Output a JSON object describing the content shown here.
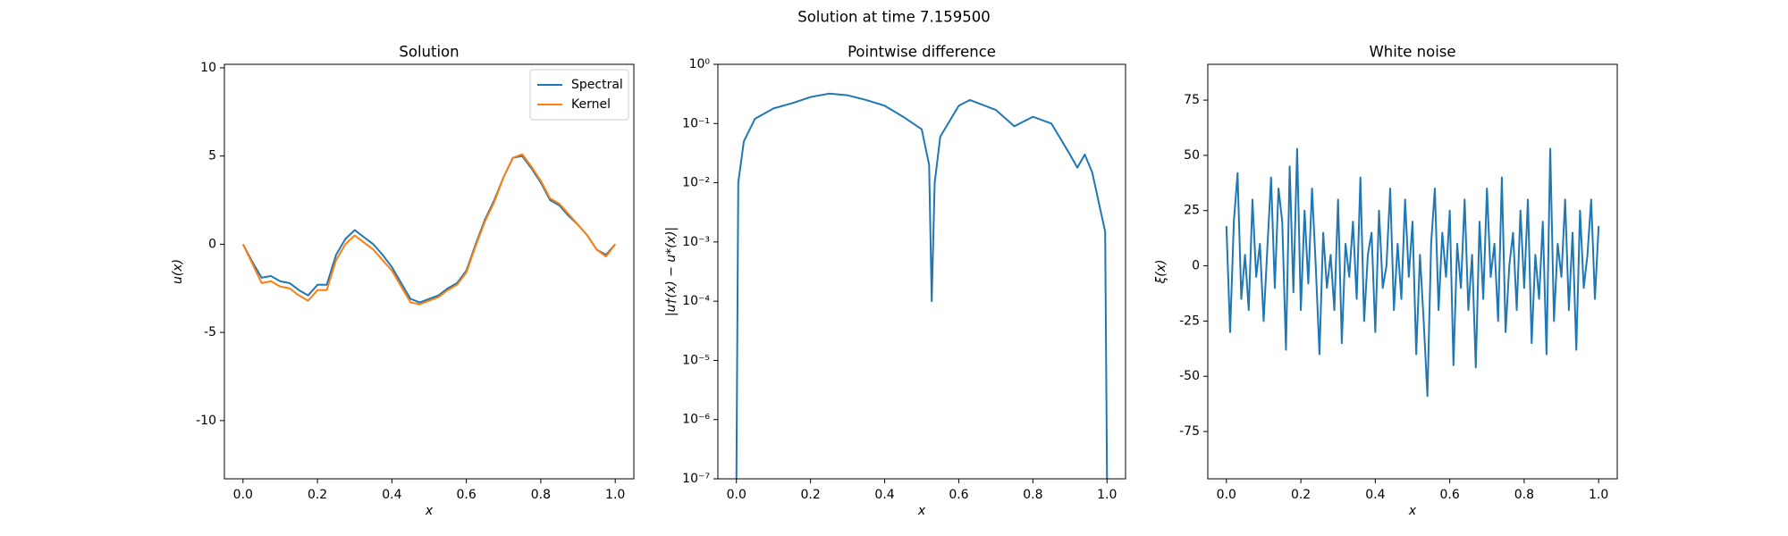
{
  "title": "Solution at time 7.159500",
  "chart_data": [
    {
      "type": "line",
      "title": "Solution",
      "xlabel": "x",
      "ylabel": "u(x)",
      "x": [
        0,
        0.025,
        0.05,
        0.075,
        0.1,
        0.125,
        0.15,
        0.175,
        0.2,
        0.225,
        0.25,
        0.275,
        0.3,
        0.325,
        0.35,
        0.375,
        0.4,
        0.425,
        0.45,
        0.475,
        0.5,
        0.525,
        0.55,
        0.575,
        0.6,
        0.625,
        0.65,
        0.675,
        0.7,
        0.725,
        0.75,
        0.775,
        0.8,
        0.825,
        0.85,
        0.875,
        0.9,
        0.925,
        0.95,
        0.975,
        1.0
      ],
      "series": [
        {
          "name": "Spectral",
          "color": "#1f77b4",
          "values": [
            0,
            -1.0,
            -1.9,
            -1.8,
            -2.1,
            -2.2,
            -2.6,
            -2.9,
            -2.3,
            -2.3,
            -0.6,
            0.3,
            0.8,
            0.4,
            0.0,
            -0.6,
            -1.3,
            -2.2,
            -3.1,
            -3.3,
            -3.1,
            -2.9,
            -2.5,
            -2.2,
            -1.5,
            0.0,
            1.4,
            2.5,
            3.8,
            4.9,
            5.0,
            4.3,
            3.5,
            2.5,
            2.2,
            1.6,
            1.1,
            0.5,
            -0.3,
            -0.6,
            0.0
          ]
        },
        {
          "name": "Kernel",
          "color": "#ff7f0e",
          "values": [
            0,
            -1.1,
            -2.2,
            -2.1,
            -2.4,
            -2.5,
            -2.9,
            -3.2,
            -2.6,
            -2.6,
            -0.9,
            0.0,
            0.5,
            0.1,
            -0.3,
            -0.9,
            -1.5,
            -2.4,
            -3.3,
            -3.4,
            -3.2,
            -3.0,
            -2.6,
            -2.3,
            -1.6,
            -0.1,
            1.3,
            2.4,
            3.8,
            4.9,
            5.1,
            4.4,
            3.6,
            2.6,
            2.3,
            1.7,
            1.1,
            0.5,
            -0.3,
            -0.7,
            0.0
          ]
        }
      ],
      "xlim": [
        -0.05,
        1.05
      ],
      "xticks": [
        {
          "value": 0,
          "label": "0.0"
        },
        {
          "value": 0.2,
          "label": "0.2"
        },
        {
          "value": 0.4,
          "label": "0.4"
        },
        {
          "value": 0.6,
          "label": "0.6"
        },
        {
          "value": 0.8,
          "label": "0.8"
        },
        {
          "value": 1,
          "label": "1.0"
        }
      ],
      "ylim": [
        -13.3,
        10.2
      ],
      "yticks": [
        -10,
        -5,
        0,
        5,
        10
      ],
      "legend": "upper right"
    },
    {
      "type": "line",
      "title": "Pointwise difference",
      "xlabel": "x",
      "ylabel": "|u†(x) − u*(x)|",
      "log_y": true,
      "x": [
        0,
        0.005,
        0.02,
        0.05,
        0.1,
        0.15,
        0.2,
        0.25,
        0.3,
        0.35,
        0.4,
        0.45,
        0.5,
        0.52,
        0.527,
        0.535,
        0.55,
        0.6,
        0.63,
        0.7,
        0.75,
        0.8,
        0.85,
        0.9,
        0.92,
        0.94,
        0.96,
        0.98,
        0.995,
        1.0
      ],
      "series": [
        {
          "name": null,
          "color": "#1f77b4",
          "values": [
            1e-07,
            0.01,
            0.05,
            0.12,
            0.18,
            0.22,
            0.28,
            0.32,
            0.3,
            0.25,
            0.2,
            0.13,
            0.08,
            0.02,
            0.0001,
            0.01,
            0.06,
            0.2,
            0.25,
            0.17,
            0.09,
            0.13,
            0.1,
            0.03,
            0.018,
            0.03,
            0.015,
            0.004,
            0.0015,
            1e-07
          ]
        }
      ],
      "xlim": [
        -0.05,
        1.05
      ],
      "xticks": [
        {
          "value": 0,
          "label": "0.0"
        },
        {
          "value": 0.2,
          "label": "0.2"
        },
        {
          "value": 0.4,
          "label": "0.4"
        },
        {
          "value": 0.6,
          "label": "0.6"
        },
        {
          "value": 0.8,
          "label": "0.8"
        },
        {
          "value": 1,
          "label": "1.0"
        }
      ],
      "ylim": [
        1e-07,
        1
      ],
      "yticks": [
        {
          "value": 1e-07,
          "label": "10⁻⁷"
        },
        {
          "value": 1e-06,
          "label": "10⁻⁶"
        },
        {
          "value": 1e-05,
          "label": "10⁻⁵"
        },
        {
          "value": 0.0001,
          "label": "10⁻⁴"
        },
        {
          "value": 0.001,
          "label": "10⁻³"
        },
        {
          "value": 0.01,
          "label": "10⁻²"
        },
        {
          "value": 0.1,
          "label": "10⁻¹"
        },
        {
          "value": 1,
          "label": "10⁰"
        }
      ]
    },
    {
      "type": "line",
      "title": "White noise",
      "xlabel": "x",
      "ylabel": "ξ(x)",
      "x": [
        0,
        0.01,
        0.02,
        0.03,
        0.04,
        0.05,
        0.06,
        0.07,
        0.08,
        0.09,
        0.1,
        0.11,
        0.12,
        0.13,
        0.14,
        0.15,
        0.16,
        0.17,
        0.18,
        0.19,
        0.2,
        0.21,
        0.22,
        0.23,
        0.24,
        0.25,
        0.26,
        0.27,
        0.28,
        0.29,
        0.3,
        0.31,
        0.32,
        0.33,
        0.34,
        0.35,
        0.36,
        0.37,
        0.38,
        0.39,
        0.4,
        0.41,
        0.42,
        0.43,
        0.44,
        0.45,
        0.46,
        0.47,
        0.48,
        0.49,
        0.5,
        0.51,
        0.52,
        0.53,
        0.54,
        0.55,
        0.56,
        0.57,
        0.58,
        0.59,
        0.6,
        0.61,
        0.62,
        0.63,
        0.64,
        0.65,
        0.66,
        0.67,
        0.68,
        0.69,
        0.7,
        0.71,
        0.72,
        0.73,
        0.74,
        0.75,
        0.76,
        0.77,
        0.78,
        0.79,
        0.8,
        0.81,
        0.82,
        0.83,
        0.84,
        0.85,
        0.86,
        0.87,
        0.88,
        0.89,
        0.9,
        0.91,
        0.92,
        0.93,
        0.94,
        0.95,
        0.96,
        0.97,
        0.98,
        0.99,
        1.0
      ],
      "series": [
        {
          "name": null,
          "color": "#1f77b4",
          "values": [
            18,
            -30,
            20,
            42,
            -15,
            5,
            -20,
            30,
            -5,
            10,
            -25,
            8,
            40,
            -10,
            35,
            20,
            -38,
            45,
            -12,
            53,
            -20,
            25,
            -8,
            35,
            0,
            -40,
            15,
            -10,
            5,
            -20,
            30,
            -35,
            10,
            -5,
            20,
            -15,
            40,
            -25,
            5,
            15,
            -30,
            25,
            -10,
            0,
            35,
            -20,
            10,
            -15,
            30,
            -5,
            20,
            -40,
            5,
            -25,
            -59,
            10,
            35,
            -20,
            15,
            -5,
            25,
            -45,
            10,
            -10,
            30,
            -20,
            5,
            -46,
            20,
            -15,
            35,
            -5,
            10,
            -25,
            40,
            -30,
            0,
            15,
            -20,
            25,
            -10,
            30,
            -35,
            5,
            -15,
            20,
            -40,
            53,
            -25,
            10,
            -5,
            30,
            -20,
            15,
            -38,
            25,
            -10,
            5,
            30,
            -15,
            18
          ]
        }
      ],
      "xlim": [
        -0.05,
        1.05
      ],
      "xticks": [
        {
          "value": 0,
          "label": "0.0"
        },
        {
          "value": 0.2,
          "label": "0.2"
        },
        {
          "value": 0.4,
          "label": "0.4"
        },
        {
          "value": 0.6,
          "label": "0.6"
        },
        {
          "value": 0.8,
          "label": "0.8"
        },
        {
          "value": 1,
          "label": "1.0"
        }
      ],
      "ylim": [
        -96.4,
        91.2
      ],
      "yticks": [
        -75,
        -50,
        -25,
        0,
        25,
        50,
        75
      ]
    }
  ]
}
